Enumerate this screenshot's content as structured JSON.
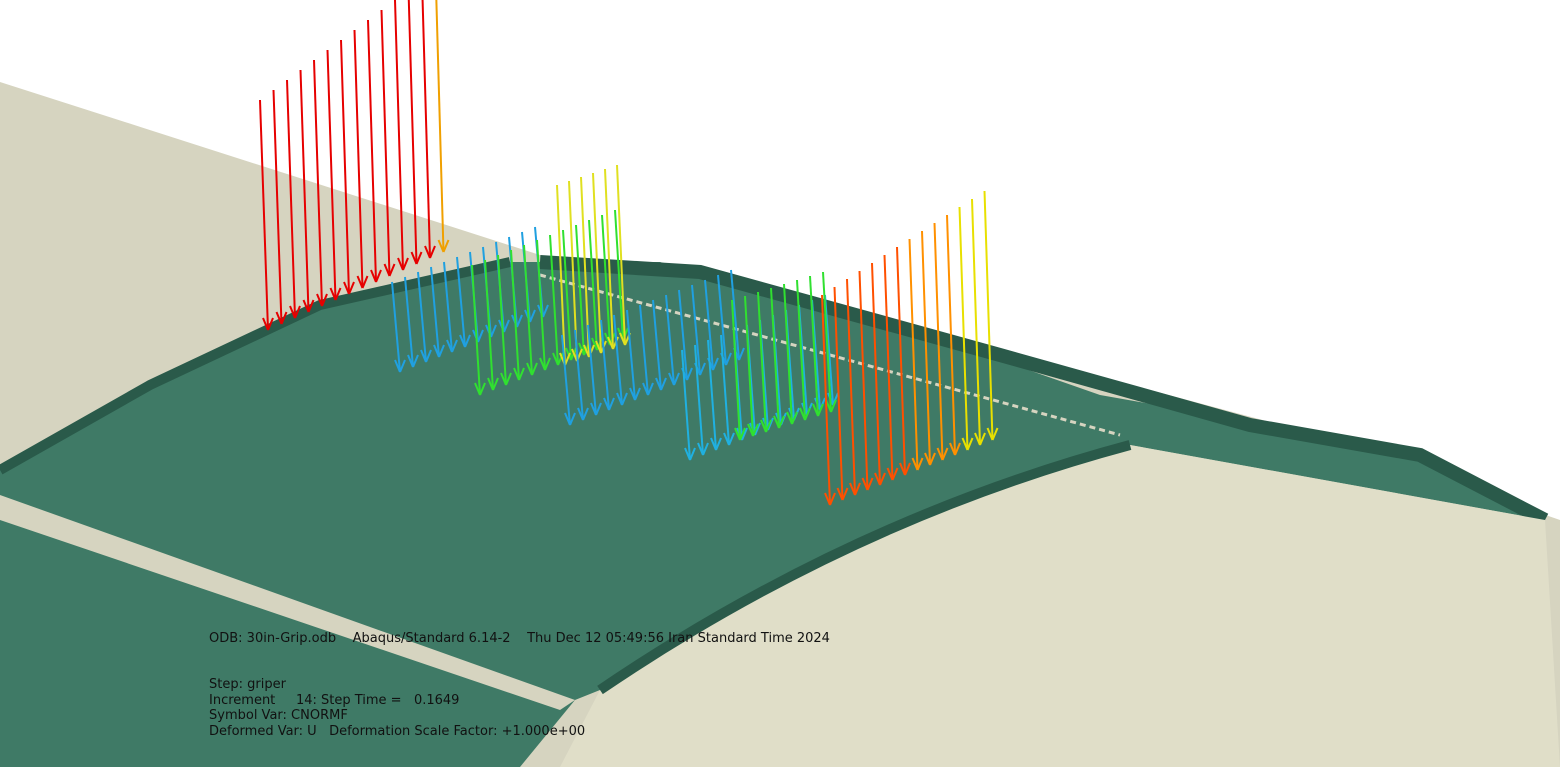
{
  "viewport": {
    "odb_line": "ODB: 30in-Grip.odb    Abaqus/Standard 6.14-2    Thu Dec 12 05:49:56 Iran Standard Time 2024",
    "step": "Step: griper",
    "increment": "Increment     14: Step Time =   0.1649",
    "symbol_var": "Symbol Var: CNORMF",
    "deformed_var": "Deformed Var: U   Deformation Scale Factor: +1.000e+00"
  }
}
